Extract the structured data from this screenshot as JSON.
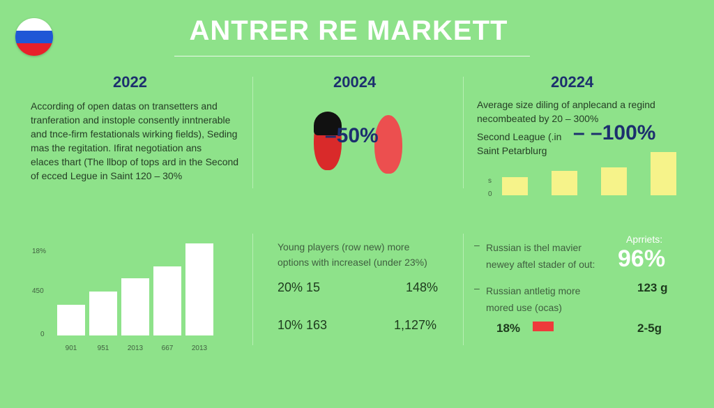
{
  "title": "ANTRER RE MARKETT",
  "colors": {
    "background": "#8ee28a",
    "accent_blue": "#1c2f6e",
    "accent_red": "#ee3b3b",
    "bar_yellow": "#f6f38a"
  },
  "panel_left": {
    "year": "2022",
    "lines": [
      "According of open datas on transetters and",
      "tranferation and instople consently inntnerable",
      "and tnce-firm festationals wirking fields), Seding",
      "mas the regitation. Ifirat negotiation ans",
      "elaces thart (The llbop of tops ard in the Second",
      "of ecced Legue in Saint 120 – 30%"
    ]
  },
  "panel_middle": {
    "year": "20024",
    "percent": "–50%"
  },
  "panel_right": {
    "year": "20224",
    "lines": [
      "Average size diling of anplecand a regind",
      "necombeated by 20 – 300%"
    ],
    "sub_lines": [
      "Second League (.in",
      "Saint Petarblurg"
    ],
    "percent": "– –100%",
    "axis_ticks": [
      "s",
      "0"
    ],
    "bar_values": [
      0.23,
      0.31,
      0.36,
      0.55
    ]
  },
  "chart_left": {
    "y_ticks": [
      "18%",
      "450",
      "0"
    ],
    "x_labels": [
      "901",
      "951",
      "2013",
      "667",
      "2013"
    ],
    "bar_values": [
      0.33,
      0.48,
      0.62,
      0.75,
      1.0
    ]
  },
  "young_players": {
    "heading": [
      "Young players (row new) more",
      "options with increasel (under 23%)"
    ],
    "rows": [
      {
        "left": "20% 15",
        "right": "148%"
      },
      {
        "left": "10% 163",
        "right": "1,127%"
      }
    ]
  },
  "russian": {
    "item1": [
      "Russian is thel mavier",
      "newey aftel stader of out:"
    ],
    "item2": [
      "Russian antletig more",
      "mored use (ocas)"
    ],
    "apprets_label": "Aprriets:",
    "big_percent": "96%",
    "val1": "123 g",
    "pct_18": "18%",
    "val2": "2-5g",
    "red_fill": 1.0
  }
}
